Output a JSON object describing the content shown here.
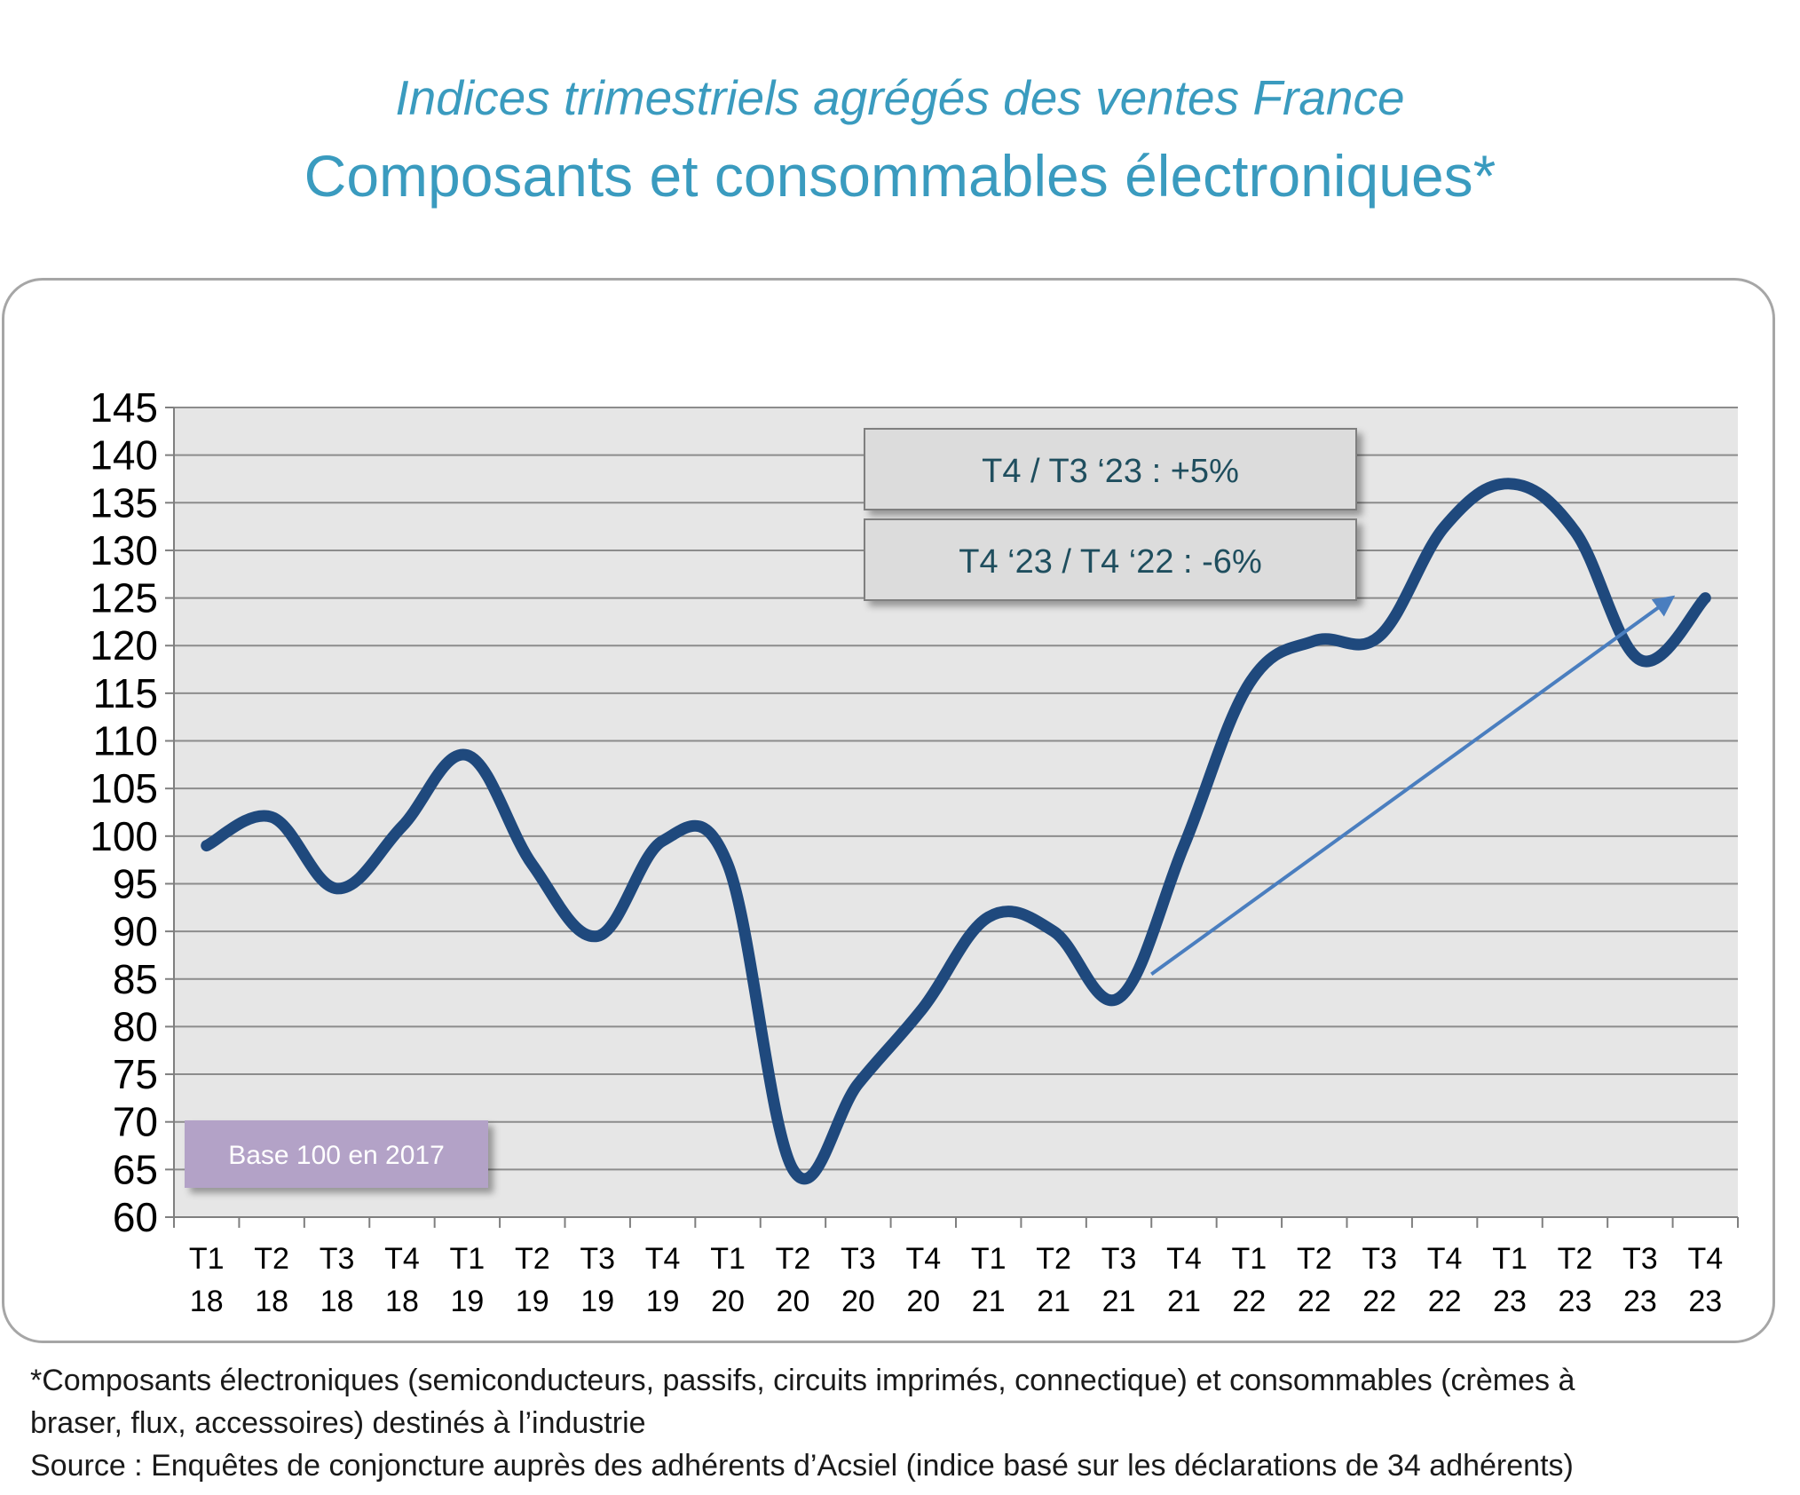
{
  "titles": {
    "line1": "Indices trimestriels agrégés des ventes France",
    "line2": "Composants et consommables électroniques*"
  },
  "annotations": {
    "box1": "T4 / T3 ‘23  : +5%",
    "box2": "T4 ‘23 / T4 ‘22 : -6%",
    "base": "Base 100 en 2017"
  },
  "footnote": {
    "line1": "*Composants électroniques (semiconducteurs, passifs, circuits imprimés, connectique) et consommables (crèmes à",
    "line2": "braser, flux, accessoires) destinés à l’industrie",
    "line3": "Source : Enquêtes de conjoncture auprès des adhérents d’Acsiel (indice basé sur les déclarations de 34 adhérents)"
  },
  "colors": {
    "title": "#3a9bbf",
    "line": "#1f497d",
    "trend_arrow": "#4a7ebf",
    "plot_bg": "#e6e6e6",
    "grid": "#8c8c8c",
    "base_box": "#b3a2c7"
  },
  "chart_data": {
    "type": "line",
    "x_labels": [
      [
        "T1",
        "18"
      ],
      [
        "T2",
        "18"
      ],
      [
        "T3",
        "18"
      ],
      [
        "T4",
        "18"
      ],
      [
        "T1",
        "19"
      ],
      [
        "T2",
        "19"
      ],
      [
        "T3",
        "19"
      ],
      [
        "T4",
        "19"
      ],
      [
        "T1",
        "20"
      ],
      [
        "T2",
        "20"
      ],
      [
        "T3",
        "20"
      ],
      [
        "T4",
        "20"
      ],
      [
        "T1",
        "21"
      ],
      [
        "T2",
        "21"
      ],
      [
        "T3",
        "21"
      ],
      [
        "T4",
        "21"
      ],
      [
        "T1",
        "22"
      ],
      [
        "T2",
        "22"
      ],
      [
        "T3",
        "22"
      ],
      [
        "T4",
        "22"
      ],
      [
        "T1",
        "23"
      ],
      [
        "T2",
        "23"
      ],
      [
        "T3",
        "23"
      ],
      [
        "T4",
        "23"
      ]
    ],
    "values": [
      99,
      102,
      94.5,
      101,
      108.5,
      97,
      89.5,
      99.5,
      97,
      65,
      74,
      82,
      91.5,
      90,
      83,
      99,
      116,
      120.5,
      121,
      132.5,
      137,
      132,
      118.5,
      125
    ],
    "y_ticks": [
      145,
      140,
      135,
      130,
      125,
      120,
      115,
      110,
      105,
      100,
      95,
      90,
      85,
      80,
      75,
      70,
      65,
      60
    ],
    "ylim": [
      60,
      145
    ],
    "grid": true,
    "trend_arrow": {
      "from_x_index": 14.5,
      "from_y": 85.5,
      "to_x_index": 23,
      "to_y": 125
    }
  }
}
